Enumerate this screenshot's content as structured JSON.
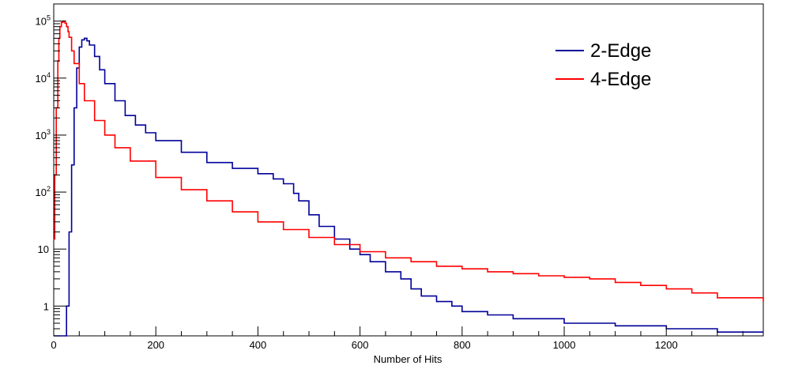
{
  "chart_data": {
    "type": "line",
    "title": "",
    "xlabel": "Number of Hits",
    "ylabel": "",
    "xlim": [
      0,
      1390
    ],
    "ylim": [
      0.3,
      200000
    ],
    "y_scale": "log",
    "grid": false,
    "legend_position": "top-right",
    "x_ticks": [
      {
        "value": 0,
        "label": "0"
      },
      {
        "value": 200,
        "label": "200"
      },
      {
        "value": 400,
        "label": "400"
      },
      {
        "value": 600,
        "label": "600"
      },
      {
        "value": 800,
        "label": "800"
      },
      {
        "value": 1000,
        "label": "1000"
      },
      {
        "value": 1200,
        "label": "1200"
      }
    ],
    "y_ticks": [
      {
        "value": 1,
        "base": "1",
        "exp": ""
      },
      {
        "value": 10,
        "base": "10",
        "exp": ""
      },
      {
        "value": 100,
        "base": "10",
        "exp": "2"
      },
      {
        "value": 1000,
        "base": "10",
        "exp": "3"
      },
      {
        "value": 10000,
        "base": "10",
        "exp": "4"
      },
      {
        "value": 100000,
        "base": "10",
        "exp": "5"
      }
    ],
    "series": [
      {
        "name": "2-Edge",
        "color": "#000099",
        "x": [
          0,
          10,
          15,
          20,
          25,
          30,
          35,
          40,
          45,
          50,
          55,
          60,
          65,
          70,
          80,
          90,
          100,
          120,
          140,
          160,
          180,
          200,
          250,
          300,
          350,
          400,
          430,
          450,
          470,
          480,
          500,
          520,
          550,
          580,
          600,
          620,
          650,
          680,
          700,
          720,
          750,
          780,
          800,
          850,
          900,
          1000,
          1100,
          1200,
          1300,
          1390
        ],
        "y": [
          0.3,
          0.3,
          0.3,
          0.3,
          1,
          20,
          300,
          3000,
          15000,
          35000,
          47000,
          50000,
          45000,
          38000,
          24000,
          14000,
          8000,
          4000,
          2200,
          1500,
          1100,
          800,
          500,
          330,
          260,
          210,
          170,
          140,
          95,
          70,
          40,
          25,
          15,
          10,
          8,
          6,
          4,
          3,
          2,
          1.5,
          1.2,
          1,
          0.8,
          0.7,
          0.6,
          0.5,
          0.45,
          0.4,
          0.35,
          0.35
        ]
      },
      {
        "name": "4-Edge",
        "color": "#ff0000",
        "x": [
          0,
          2,
          5,
          8,
          10,
          12,
          15,
          18,
          20,
          22,
          25,
          28,
          30,
          35,
          40,
          50,
          60,
          80,
          100,
          120,
          150,
          200,
          250,
          300,
          350,
          400,
          450,
          500,
          550,
          600,
          650,
          700,
          750,
          800,
          850,
          900,
          950,
          1000,
          1050,
          1100,
          1150,
          1200,
          1250,
          1300,
          1390
        ],
        "y": [
          15,
          200,
          3000,
          20000,
          50000,
          80000,
          95000,
          100000,
          98000,
          92000,
          80000,
          65000,
          52000,
          30000,
          18000,
          8000,
          4000,
          1800,
          1000,
          600,
          350,
          180,
          110,
          70,
          45,
          30,
          22,
          16,
          12,
          9,
          7,
          6,
          5,
          4.5,
          4,
          3.7,
          3.4,
          3.2,
          3,
          2.6,
          2.3,
          2,
          1.7,
          1.4,
          1.2
        ]
      }
    ]
  }
}
